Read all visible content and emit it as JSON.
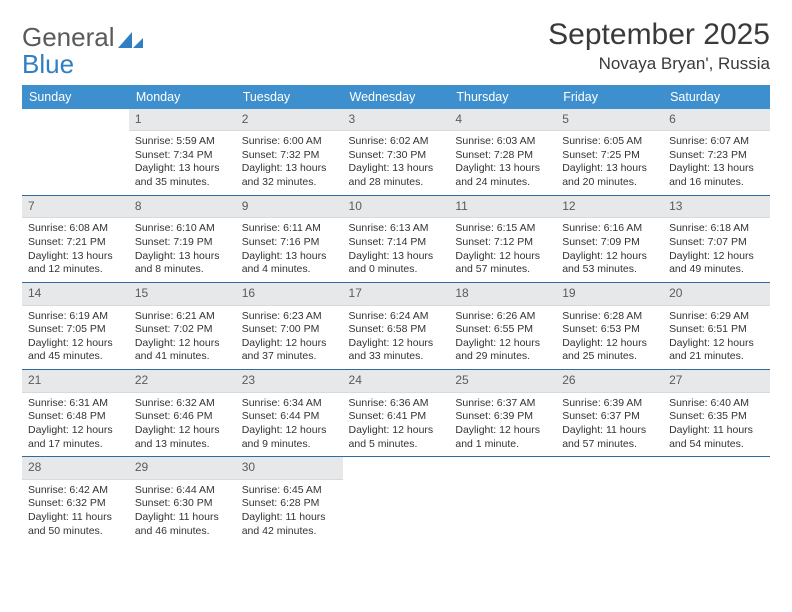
{
  "logo": {
    "word1": "General",
    "word2": "Blue"
  },
  "title": {
    "month": "September 2025",
    "location": "Novaya Bryan', Russia"
  },
  "colors": {
    "header_bg": "#3e8fce",
    "header_text": "#ffffff",
    "daynum_bg": "#e7e8e9",
    "row_border": "#2f6aa3",
    "logo_gray": "#5a5a5a",
    "logo_blue": "#2f7fc2",
    "body_text": "#333333"
  },
  "fonts": {
    "title_size": 30,
    "location_size": 17,
    "dayhead_size": 12.5,
    "cell_size": 10.5
  },
  "days_of_week": [
    "Sunday",
    "Monday",
    "Tuesday",
    "Wednesday",
    "Thursday",
    "Friday",
    "Saturday"
  ],
  "weeks": [
    [
      null,
      {
        "n": "1",
        "sr": "Sunrise: 5:59 AM",
        "ss": "Sunset: 7:34 PM",
        "d1": "Daylight: 13 hours",
        "d2": "and 35 minutes."
      },
      {
        "n": "2",
        "sr": "Sunrise: 6:00 AM",
        "ss": "Sunset: 7:32 PM",
        "d1": "Daylight: 13 hours",
        "d2": "and 32 minutes."
      },
      {
        "n": "3",
        "sr": "Sunrise: 6:02 AM",
        "ss": "Sunset: 7:30 PM",
        "d1": "Daylight: 13 hours",
        "d2": "and 28 minutes."
      },
      {
        "n": "4",
        "sr": "Sunrise: 6:03 AM",
        "ss": "Sunset: 7:28 PM",
        "d1": "Daylight: 13 hours",
        "d2": "and 24 minutes."
      },
      {
        "n": "5",
        "sr": "Sunrise: 6:05 AM",
        "ss": "Sunset: 7:25 PM",
        "d1": "Daylight: 13 hours",
        "d2": "and 20 minutes."
      },
      {
        "n": "6",
        "sr": "Sunrise: 6:07 AM",
        "ss": "Sunset: 7:23 PM",
        "d1": "Daylight: 13 hours",
        "d2": "and 16 minutes."
      }
    ],
    [
      {
        "n": "7",
        "sr": "Sunrise: 6:08 AM",
        "ss": "Sunset: 7:21 PM",
        "d1": "Daylight: 13 hours",
        "d2": "and 12 minutes."
      },
      {
        "n": "8",
        "sr": "Sunrise: 6:10 AM",
        "ss": "Sunset: 7:19 PM",
        "d1": "Daylight: 13 hours",
        "d2": "and 8 minutes."
      },
      {
        "n": "9",
        "sr": "Sunrise: 6:11 AM",
        "ss": "Sunset: 7:16 PM",
        "d1": "Daylight: 13 hours",
        "d2": "and 4 minutes."
      },
      {
        "n": "10",
        "sr": "Sunrise: 6:13 AM",
        "ss": "Sunset: 7:14 PM",
        "d1": "Daylight: 13 hours",
        "d2": "and 0 minutes."
      },
      {
        "n": "11",
        "sr": "Sunrise: 6:15 AM",
        "ss": "Sunset: 7:12 PM",
        "d1": "Daylight: 12 hours",
        "d2": "and 57 minutes."
      },
      {
        "n": "12",
        "sr": "Sunrise: 6:16 AM",
        "ss": "Sunset: 7:09 PM",
        "d1": "Daylight: 12 hours",
        "d2": "and 53 minutes."
      },
      {
        "n": "13",
        "sr": "Sunrise: 6:18 AM",
        "ss": "Sunset: 7:07 PM",
        "d1": "Daylight: 12 hours",
        "d2": "and 49 minutes."
      }
    ],
    [
      {
        "n": "14",
        "sr": "Sunrise: 6:19 AM",
        "ss": "Sunset: 7:05 PM",
        "d1": "Daylight: 12 hours",
        "d2": "and 45 minutes."
      },
      {
        "n": "15",
        "sr": "Sunrise: 6:21 AM",
        "ss": "Sunset: 7:02 PM",
        "d1": "Daylight: 12 hours",
        "d2": "and 41 minutes."
      },
      {
        "n": "16",
        "sr": "Sunrise: 6:23 AM",
        "ss": "Sunset: 7:00 PM",
        "d1": "Daylight: 12 hours",
        "d2": "and 37 minutes."
      },
      {
        "n": "17",
        "sr": "Sunrise: 6:24 AM",
        "ss": "Sunset: 6:58 PM",
        "d1": "Daylight: 12 hours",
        "d2": "and 33 minutes."
      },
      {
        "n": "18",
        "sr": "Sunrise: 6:26 AM",
        "ss": "Sunset: 6:55 PM",
        "d1": "Daylight: 12 hours",
        "d2": "and 29 minutes."
      },
      {
        "n": "19",
        "sr": "Sunrise: 6:28 AM",
        "ss": "Sunset: 6:53 PM",
        "d1": "Daylight: 12 hours",
        "d2": "and 25 minutes."
      },
      {
        "n": "20",
        "sr": "Sunrise: 6:29 AM",
        "ss": "Sunset: 6:51 PM",
        "d1": "Daylight: 12 hours",
        "d2": "and 21 minutes."
      }
    ],
    [
      {
        "n": "21",
        "sr": "Sunrise: 6:31 AM",
        "ss": "Sunset: 6:48 PM",
        "d1": "Daylight: 12 hours",
        "d2": "and 17 minutes."
      },
      {
        "n": "22",
        "sr": "Sunrise: 6:32 AM",
        "ss": "Sunset: 6:46 PM",
        "d1": "Daylight: 12 hours",
        "d2": "and 13 minutes."
      },
      {
        "n": "23",
        "sr": "Sunrise: 6:34 AM",
        "ss": "Sunset: 6:44 PM",
        "d1": "Daylight: 12 hours",
        "d2": "and 9 minutes."
      },
      {
        "n": "24",
        "sr": "Sunrise: 6:36 AM",
        "ss": "Sunset: 6:41 PM",
        "d1": "Daylight: 12 hours",
        "d2": "and 5 minutes."
      },
      {
        "n": "25",
        "sr": "Sunrise: 6:37 AM",
        "ss": "Sunset: 6:39 PM",
        "d1": "Daylight: 12 hours",
        "d2": "and 1 minute."
      },
      {
        "n": "26",
        "sr": "Sunrise: 6:39 AM",
        "ss": "Sunset: 6:37 PM",
        "d1": "Daylight: 11 hours",
        "d2": "and 57 minutes."
      },
      {
        "n": "27",
        "sr": "Sunrise: 6:40 AM",
        "ss": "Sunset: 6:35 PM",
        "d1": "Daylight: 11 hours",
        "d2": "and 54 minutes."
      }
    ],
    [
      {
        "n": "28",
        "sr": "Sunrise: 6:42 AM",
        "ss": "Sunset: 6:32 PM",
        "d1": "Daylight: 11 hours",
        "d2": "and 50 minutes."
      },
      {
        "n": "29",
        "sr": "Sunrise: 6:44 AM",
        "ss": "Sunset: 6:30 PM",
        "d1": "Daylight: 11 hours",
        "d2": "and 46 minutes."
      },
      {
        "n": "30",
        "sr": "Sunrise: 6:45 AM",
        "ss": "Sunset: 6:28 PM",
        "d1": "Daylight: 11 hours",
        "d2": "and 42 minutes."
      },
      null,
      null,
      null,
      null
    ]
  ]
}
